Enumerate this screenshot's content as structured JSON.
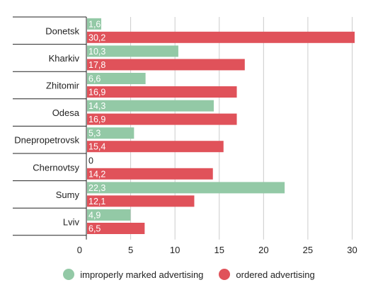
{
  "colors": {
    "improperly": "#93c9a6",
    "ordered": "#e0525a",
    "axis": "#222222",
    "grid": "#cccccc",
    "text": "#222222"
  },
  "legend": {
    "improperly": "improperly marked advertising",
    "ordered": "ordered advertising"
  },
  "chart_data": {
    "type": "bar",
    "orientation": "horizontal",
    "categories": [
      "Donetsk",
      "Kharkiv",
      "Zhitomir",
      "Odesa",
      "Dnepropetrovsk",
      "Chernovtsy",
      "Sumy",
      "Lviv"
    ],
    "series": [
      {
        "name": "improperly marked advertising",
        "values": [
          1.6,
          10.3,
          6.6,
          14.3,
          5.3,
          0,
          22.3,
          4.9
        ],
        "labels": [
          "1,6",
          "10,3",
          "6,6",
          "14,3",
          "5,3",
          "0",
          "22,3",
          "4,9"
        ]
      },
      {
        "name": "ordered advertising",
        "values": [
          30.2,
          17.8,
          16.9,
          16.9,
          15.4,
          14.2,
          12.1,
          6.5
        ],
        "labels": [
          "30,2",
          "17,8",
          "16,9",
          "16,9",
          "15,4",
          "14,2",
          "12,1",
          "6,5"
        ]
      }
    ],
    "x_ticks": [
      0,
      5,
      10,
      15,
      20,
      25,
      30
    ],
    "xlim": [
      0,
      30.5
    ],
    "grid": "vertical",
    "legend_position": "bottom"
  }
}
